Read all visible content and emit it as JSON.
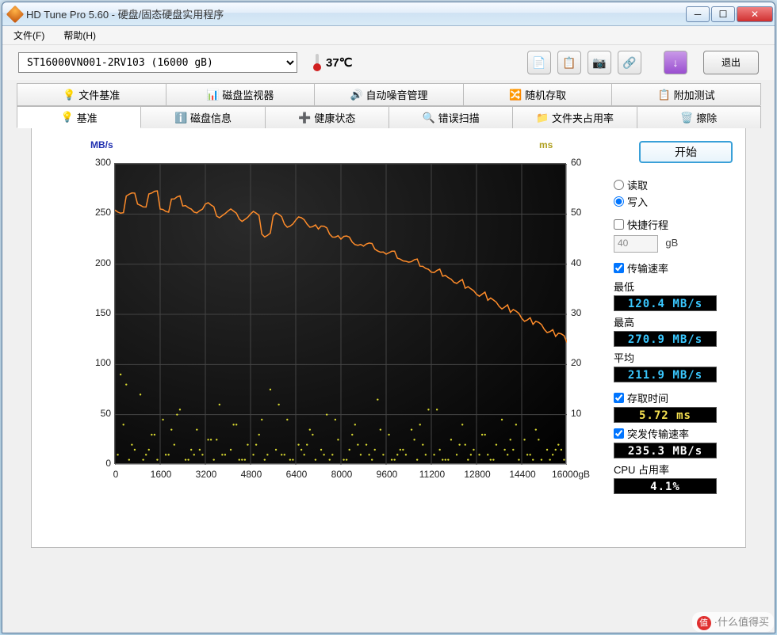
{
  "window": {
    "title": "HD Tune Pro 5.60 - 硬盘/固态硬盘实用程序"
  },
  "menu": {
    "file": "文件(F)",
    "help": "帮助(H)"
  },
  "toolbar": {
    "drive": "ST16000VN001-2RV103 (16000 gB)",
    "temp": "37℃",
    "exit": "退出"
  },
  "tabs_row1": {
    "file_benchmark": "文件基准",
    "disk_monitor": "磁盘监视器",
    "aam": "自动噪音管理",
    "random_access": "随机存取",
    "extra_tests": "附加测试"
  },
  "tabs_row2": {
    "benchmark": "基准",
    "info": "磁盘信息",
    "health": "健康状态",
    "error_scan": "错误扫描",
    "folder_usage": "文件夹占用率",
    "erase": "擦除"
  },
  "chart": {
    "type": "line+scatter",
    "y_left_label": "MB/s",
    "y_right_label": "ms",
    "x_unit": "gB",
    "ylim_left": [
      0,
      300
    ],
    "yticks_left": [
      0,
      50,
      100,
      150,
      200,
      250,
      300
    ],
    "ylim_right": [
      0,
      60
    ],
    "yticks_right": [
      10,
      20,
      30,
      40,
      50,
      60
    ],
    "xlim": [
      0,
      16000
    ],
    "xticks": [
      0,
      1600,
      3200,
      4800,
      6400,
      8000,
      9600,
      11200,
      12800,
      14400,
      16000
    ],
    "speed_color": "#ff8c2a",
    "scatter_color": "#d8d830",
    "background_color": "#000000",
    "grid_color": "#444444",
    "speed_series_x": [
      0,
      400,
      800,
      1200,
      1600,
      2000,
      2400,
      2800,
      3200,
      3600,
      4000,
      4400,
      4800,
      5200,
      5600,
      6000,
      6400,
      6800,
      7200,
      7600,
      8000,
      8400,
      8800,
      9200,
      9600,
      10000,
      10400,
      10800,
      11200,
      11600,
      12000,
      12400,
      12800,
      13200,
      13600,
      14000,
      14400,
      14800,
      15200,
      15600,
      16000
    ],
    "speed_series_y": [
      254,
      268,
      260,
      270,
      255,
      265,
      258,
      252,
      260,
      248,
      253,
      245,
      250,
      230,
      248,
      240,
      244,
      240,
      235,
      230,
      225,
      222,
      218,
      215,
      210,
      206,
      202,
      198,
      192,
      188,
      182,
      176,
      170,
      164,
      158,
      152,
      146,
      140,
      135,
      128,
      122
    ],
    "access_points_x": [
      100,
      300,
      500,
      700,
      900,
      1100,
      1300,
      1500,
      1700,
      1900,
      2100,
      2300,
      2500,
      2700,
      2900,
      3100,
      3300,
      3500,
      3700,
      3900,
      4100,
      4300,
      4500,
      4700,
      4900,
      5100,
      5300,
      5500,
      5700,
      5900,
      6100,
      6300,
      6500,
      6700,
      6900,
      7100,
      7300,
      7500,
      7700,
      7900,
      8100,
      8300,
      8500,
      8700,
      8900,
      9100,
      9300,
      9500,
      9700,
      9900,
      10100,
      10300,
      10500,
      10700,
      10900,
      11100,
      11300,
      11500,
      11700,
      11900,
      12100,
      12300,
      12500,
      12700,
      12900,
      13100,
      13300,
      13500,
      13700,
      13900,
      14100,
      14300,
      14500,
      14700,
      14900,
      15100,
      15300,
      15500,
      15700,
      15900,
      200,
      600,
      1000,
      1400,
      1800,
      2200,
      2600,
      3000,
      3400,
      3800,
      4200,
      4600,
      5000,
      5400,
      5800,
      6200,
      6600,
      7000,
      7400,
      7800,
      8200,
      8600,
      9000,
      9400,
      9800,
      10200,
      10600,
      11000,
      11400,
      11800,
      12200,
      12600,
      13000,
      13400,
      13800,
      14200,
      14600,
      15000,
      15400,
      15800,
      400,
      1200,
      2000,
      2800,
      3600,
      4400,
      5200,
      6000,
      6800,
      7600,
      8400,
      9200,
      10000,
      10800,
      11600,
      12400,
      13200,
      14000,
      14800,
      15600
    ],
    "access_points_y": [
      2,
      8,
      1,
      3,
      14,
      2,
      6,
      1,
      9,
      2,
      4,
      11,
      1,
      3,
      7,
      2,
      5,
      1,
      12,
      2,
      3,
      8,
      1,
      4,
      2,
      6,
      1,
      15,
      3,
      2,
      9,
      1,
      4,
      2,
      7,
      1,
      3,
      10,
      2,
      5,
      1,
      3,
      8,
      2,
      4,
      1,
      13,
      2,
      6,
      1,
      3,
      2,
      7,
      1,
      4,
      11,
      2,
      3,
      1,
      5,
      2,
      8,
      1,
      3,
      2,
      6,
      1,
      4,
      9,
      2,
      3,
      1,
      5,
      2,
      7,
      1,
      3,
      2,
      4,
      1,
      18,
      4,
      1,
      6,
      2,
      10,
      1,
      3,
      5,
      2,
      8,
      1,
      4,
      2,
      12,
      1,
      3,
      6,
      2,
      9,
      1,
      4,
      2,
      7,
      1,
      3,
      5,
      2,
      11,
      1,
      4,
      2,
      6,
      1,
      3,
      8,
      2,
      5,
      1,
      3,
      16,
      3,
      7,
      2,
      5,
      1,
      9,
      2,
      4,
      1,
      6,
      3,
      2,
      8,
      1,
      4,
      2,
      5,
      1,
      3
    ]
  },
  "controls": {
    "start": "开始",
    "read": "读取",
    "write": "写入",
    "mode_selected": "write",
    "short_stroke": "快捷行程",
    "short_stroke_checked": false,
    "short_stroke_value": "40",
    "short_stroke_unit": "gB",
    "transfer_rate": "传输速率",
    "transfer_rate_checked": true,
    "min_label": "最低",
    "min_value": "120.4 MB/s",
    "max_label": "最高",
    "max_value": "270.9 MB/s",
    "avg_label": "平均",
    "avg_value": "211.9 MB/s",
    "access_time": "存取时间",
    "access_time_checked": true,
    "access_value": "5.72 ms",
    "burst_rate": "突发传输速率",
    "burst_rate_checked": true,
    "burst_value": "235.3 MB/s",
    "cpu_label": "CPU 占用率",
    "cpu_value": "4.1%"
  },
  "watermark": "·什么值得买"
}
